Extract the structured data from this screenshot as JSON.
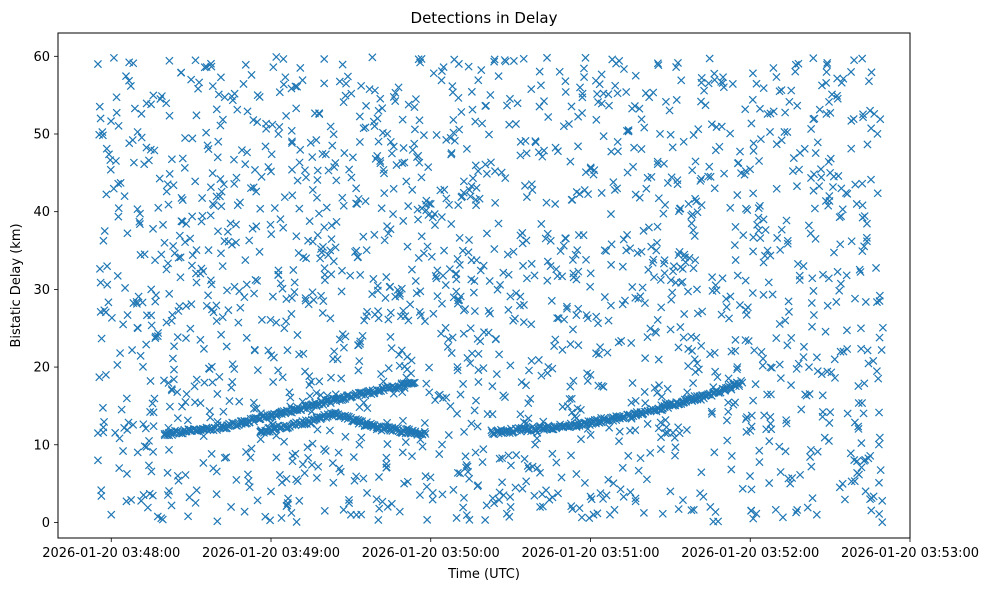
{
  "chart_data": {
    "type": "scatter",
    "title": "Detections in Delay",
    "xlabel": "Time (UTC)",
    "ylabel": "Bistatic Delay (km)",
    "x_ticks": [
      "2026-01-20 03:48:00",
      "2026-01-20 03:49:00",
      "2026-01-20 03:50:00",
      "2026-01-20 03:51:00",
      "2026-01-20 03:52:00",
      "2026-01-20 03:53:00"
    ],
    "y_ticks": [
      "0",
      "10",
      "20",
      "30",
      "40",
      "50",
      "60"
    ],
    "xlim": [
      "2026-01-20 03:47:40",
      "2026-01-20 03:53:00"
    ],
    "ylim": [
      -2,
      63
    ],
    "marker": "x",
    "color": "#1f77b4",
    "series": [
      {
        "values": [
          [
            "2026-01-20 03:47:55",
            11.5
          ],
          [
            "2026-01-20 03:47:57",
            11.6
          ],
          [
            "2026-01-20 03:48:06",
            11.9
          ],
          [
            "2026-01-20 03:48:13",
            12.1
          ],
          [
            "2026-01-20 03:48:20",
            11.4
          ],
          [
            "2026-01-20 03:48:27",
            11.7
          ],
          [
            "2026-01-20 03:48:35",
            12.0
          ],
          [
            "2026-01-20 03:48:42",
            12.3
          ],
          [
            "2026-01-20 03:48:49",
            12.7
          ],
          [
            "2026-01-20 03:48:56",
            13.3
          ],
          [
            "2026-01-20 03:49:03",
            14.0
          ],
          [
            "2026-01-20 03:49:09",
            14.6
          ],
          [
            "2026-01-20 03:49:15",
            15.1
          ],
          [
            "2026-01-20 03:49:21",
            15.6
          ],
          [
            "2026-01-20 03:49:27",
            16.0
          ],
          [
            "2026-01-20 03:49:34",
            16.5
          ],
          [
            "2026-01-20 03:49:41",
            17.0
          ],
          [
            "2026-01-20 03:49:48",
            17.5
          ],
          [
            "2026-01-20 03:49:54",
            18.0
          ],
          [
            "2026-01-20 03:48:56",
            11.7
          ],
          [
            "2026-01-20 03:49:06",
            12.2
          ],
          [
            "2026-01-20 03:49:16",
            13.1
          ],
          [
            "2026-01-20 03:49:23",
            14.0
          ],
          [
            "2026-01-20 03:49:31",
            13.0
          ],
          [
            "2026-01-20 03:49:40",
            12.2
          ],
          [
            "2026-01-20 03:49:49",
            11.6
          ],
          [
            "2026-01-20 03:49:58",
            11.4
          ],
          [
            "2026-01-20 03:50:23",
            11.6
          ],
          [
            "2026-01-20 03:50:31",
            11.7
          ],
          [
            "2026-01-20 03:50:39",
            11.9
          ],
          [
            "2026-01-20 03:50:47",
            12.2
          ],
          [
            "2026-01-20 03:50:55",
            12.5
          ],
          [
            "2026-01-20 03:51:03",
            12.9
          ],
          [
            "2026-01-20 03:51:11",
            13.4
          ],
          [
            "2026-01-20 03:51:19",
            14.0
          ],
          [
            "2026-01-20 03:51:27",
            14.7
          ],
          [
            "2026-01-20 03:51:35",
            15.4
          ],
          [
            "2026-01-20 03:51:43",
            16.3
          ],
          [
            "2026-01-20 03:51:50",
            17.1
          ],
          [
            "2026-01-20 03:51:57",
            18.0
          ],
          [
            "2026-01-20 03:51:07",
            12.2
          ],
          [
            "2026-01-20 03:51:11",
            11.7
          ],
          [
            "2026-01-20 03:52:00",
            11.8
          ],
          [
            "2026-01-20 03:52:06",
            12.0
          ],
          [
            "2026-01-20 03:48:10",
            25.0
          ],
          [
            "2026-01-20 03:49:05",
            25.0
          ],
          [
            "2026-01-20 03:49:35",
            26.0
          ],
          [
            "2026-01-20 03:50:15",
            25.0
          ],
          [
            "2026-01-20 03:50:20",
            24.5
          ],
          [
            "2026-01-20 03:51:55",
            18.0
          ],
          [
            "2026-01-20 03:52:02",
            17.8
          ],
          [
            "2026-01-20 03:47:55",
            59.0
          ],
          [
            "2026-01-20 03:48:01",
            59.8
          ],
          [
            "2026-01-20 03:48:30",
            57.0
          ],
          [
            "2026-01-20 03:49:11",
            58.5
          ],
          [
            "2026-01-20 03:49:56",
            59.2
          ],
          [
            "2026-01-20 03:50:24",
            59.6
          ],
          [
            "2026-01-20 03:51:17",
            57.5
          ],
          [
            "2026-01-20 03:52:11",
            55.5
          ],
          [
            "2026-01-20 03:52:39",
            59.5
          ],
          [
            "2026-01-20 03:48:05",
            42.0
          ],
          [
            "2026-01-20 03:48:40",
            47.0
          ],
          [
            "2026-01-20 03:49:20",
            38.0
          ],
          [
            "2026-01-20 03:50:05",
            35.0
          ],
          [
            "2026-01-20 03:50:45",
            33.0
          ],
          [
            "2026-01-20 03:51:25",
            36.0
          ],
          [
            "2026-01-20 03:52:30",
            45.0
          ],
          [
            "2026-01-20 03:48:15",
            30.0
          ],
          [
            "2026-01-20 03:48:50",
            29.0
          ],
          [
            "2026-01-20 03:49:45",
            27.0
          ],
          [
            "2026-01-20 03:50:35",
            28.0
          ],
          [
            "2026-01-20 03:51:40",
            30.0
          ],
          [
            "2026-01-20 03:52:20",
            33.0
          ],
          [
            "2026-01-20 03:47:58",
            19.0
          ],
          [
            "2026-01-20 03:48:35",
            18.0
          ],
          [
            "2026-01-20 03:49:25",
            21.0
          ],
          [
            "2026-01-20 03:50:10",
            20.0
          ],
          [
            "2026-01-20 03:51:00",
            19.0
          ],
          [
            "2026-01-20 03:52:35",
            22.0
          ],
          [
            "2026-01-20 03:47:55",
            8.0
          ],
          [
            "2026-01-20 03:48:25",
            6.0
          ],
          [
            "2026-01-20 03:49:00",
            4.0
          ],
          [
            "2026-01-20 03:49:50",
            5.0
          ],
          [
            "2026-01-20 03:50:40",
            7.0
          ],
          [
            "2026-01-20 03:51:30",
            4.0
          ],
          [
            "2026-01-20 03:52:15",
            5.0
          ],
          [
            "2026-01-20 03:52:45",
            3.0
          ],
          [
            "2026-01-20 03:48:00",
            1.0
          ],
          [
            "2026-01-20 03:48:45",
            2.0
          ],
          [
            "2026-01-20 03:49:30",
            1.0
          ],
          [
            "2026-01-20 03:50:30",
            2.0
          ],
          [
            "2026-01-20 03:51:45",
            2.0
          ],
          [
            "2026-01-20 03:52:25",
            1.0
          ],
          [
            "2026-01-20 03:47:56",
            52.0
          ],
          [
            "2026-01-20 03:48:55",
            55.0
          ],
          [
            "2026-01-20 03:49:40",
            52.0
          ],
          [
            "2026-01-20 03:50:50",
            51.0
          ],
          [
            "2026-01-20 03:51:35",
            49.0
          ],
          [
            "2026-01-20 03:52:45",
            53.0
          ],
          [
            "2026-01-20 03:48:20",
            36.0
          ],
          [
            "2026-01-20 03:49:10",
            44.0
          ],
          [
            "2026-01-20 03:50:00",
            41.0
          ],
          [
            "2026-01-20 03:51:10",
            43.0
          ],
          [
            "2026-01-20 03:52:05",
            39.0
          ],
          [
            "2026-01-20 03:52:40",
            41.0
          ]
        ]
      }
    ],
    "background_noise": "uniform clutter of x markers across 03:47:55–03:52:50 and 0–60 km"
  }
}
